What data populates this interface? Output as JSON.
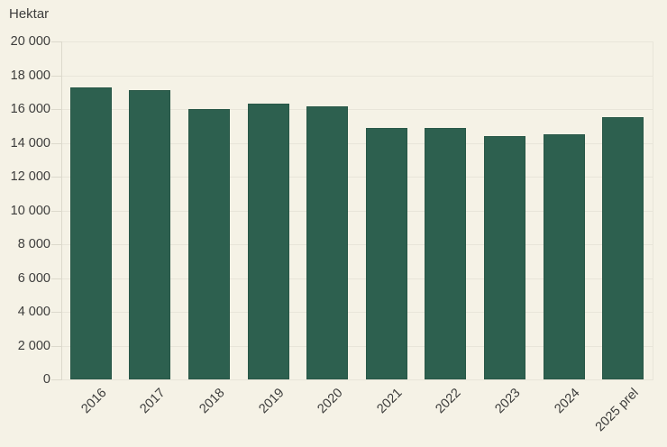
{
  "chart_data": {
    "type": "bar",
    "title": "Hektar",
    "ylabel": "Hektar",
    "xlabel": "",
    "categories": [
      "2016",
      "2017",
      "2018",
      "2019",
      "2020",
      "2021",
      "2022",
      "2023",
      "2024",
      "2025 prel"
    ],
    "values": [
      17300,
      17100,
      16000,
      16300,
      16150,
      14900,
      14900,
      14400,
      14500,
      15500
    ],
    "ylim": [
      0,
      20000
    ],
    "ytick_step": 2000,
    "ytick_labels": [
      "0",
      "2 000",
      "4 000",
      "6 000",
      "8 000",
      "10 000",
      "12 000",
      "14 000",
      "16 000",
      "18 000",
      "20 000"
    ],
    "grid": "horizontal",
    "legend": "none",
    "colors": {
      "bar": "#2d604f",
      "background": "#f5f2e6",
      "gridline": "#e8e5d9",
      "axis": "#dcd9cc",
      "text": "#3d3d3c"
    }
  }
}
